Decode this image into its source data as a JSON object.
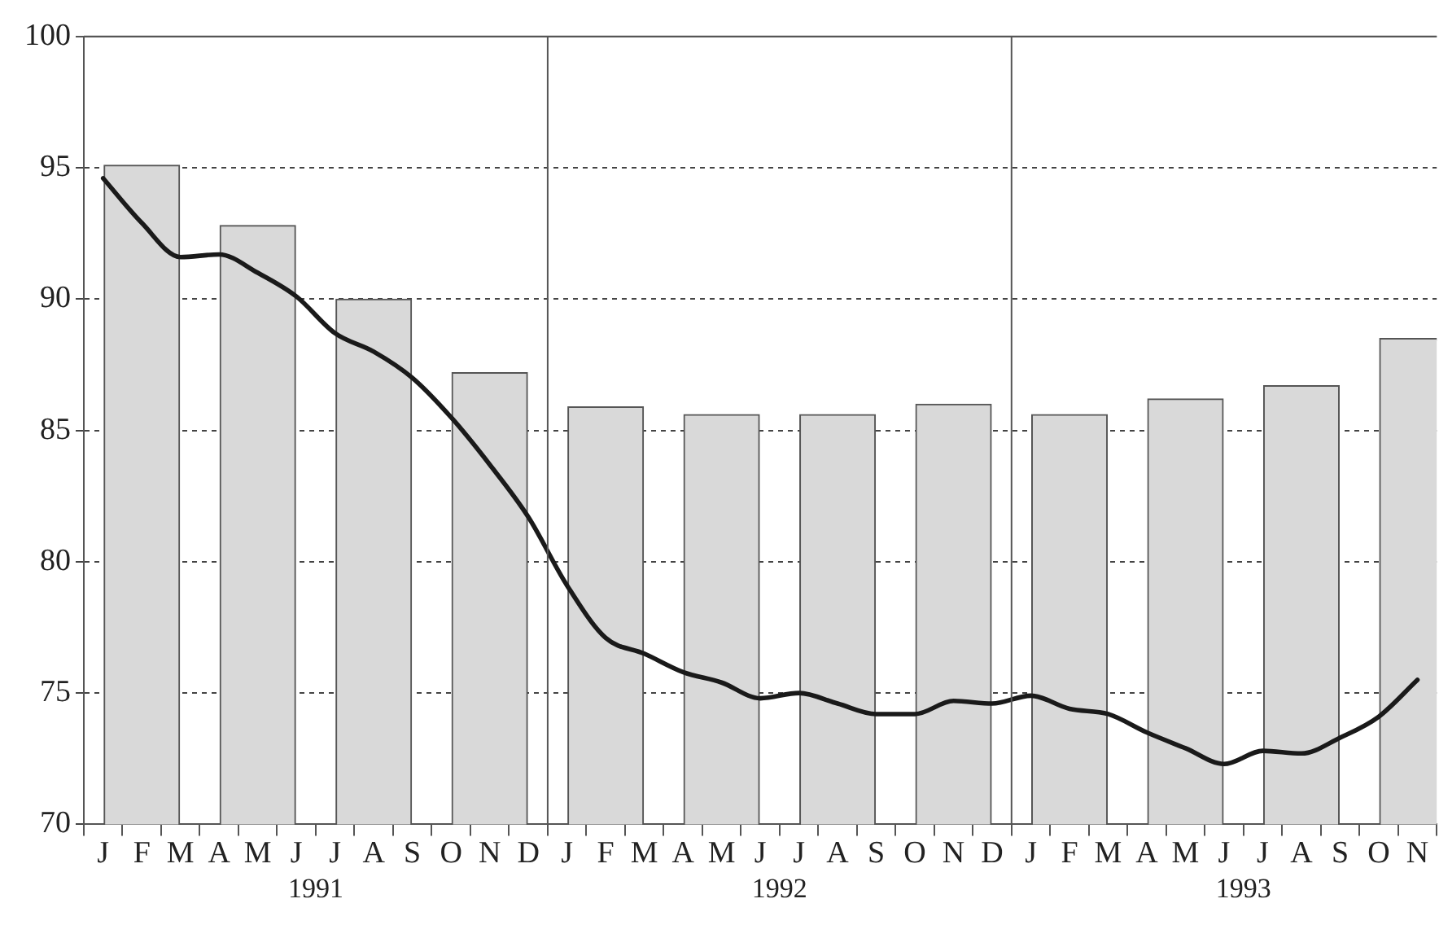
{
  "chart_data": {
    "type": "bar",
    "categories": [
      "J",
      "F",
      "M",
      "A",
      "M",
      "J",
      "J",
      "A",
      "S",
      "O",
      "N",
      "D",
      "J",
      "F",
      "M",
      "A",
      "M",
      "J",
      "J",
      "A",
      "S",
      "O",
      "N",
      "D",
      "J",
      "F",
      "M",
      "A",
      "M",
      "J",
      "J",
      "A",
      "S",
      "O",
      "N"
    ],
    "annotations": [
      "1991",
      "1992",
      "1993"
    ],
    "series": [
      {
        "color": "#d9d9d9",
        "values": [
          null,
          95.1,
          null,
          null,
          92.8,
          null,
          null,
          90.0,
          null,
          null,
          87.2,
          null,
          null,
          85.9,
          null,
          null,
          85.6,
          null,
          null,
          85.6,
          null,
          null,
          86.0,
          null,
          null,
          85.6,
          null,
          null,
          86.2,
          null,
          null,
          86.7,
          null,
          null,
          88.5
        ]
      },
      {
        "type": "line",
        "color": "#1a1a1a",
        "values": [
          94.6,
          92.9,
          91.6,
          91.7,
          91.0,
          90.1,
          88.7,
          88.0,
          87.0,
          85.5,
          83.7,
          81.7,
          79.1,
          77.1,
          76.5,
          75.8,
          75.4,
          74.8,
          75.0,
          74.6,
          74.2,
          74.2,
          74.7,
          74.6,
          74.9,
          74.4,
          74.2,
          73.5,
          72.9,
          72.3,
          72.8,
          72.7,
          73.3,
          74.1,
          75.5
        ]
      }
    ],
    "ylim": [
      70,
      100
    ],
    "yticks": [
      70,
      75,
      80,
      85,
      90,
      95,
      100
    ],
    "grid": "y",
    "legend": false,
    "marker": "none",
    "line_style": "solid"
  }
}
